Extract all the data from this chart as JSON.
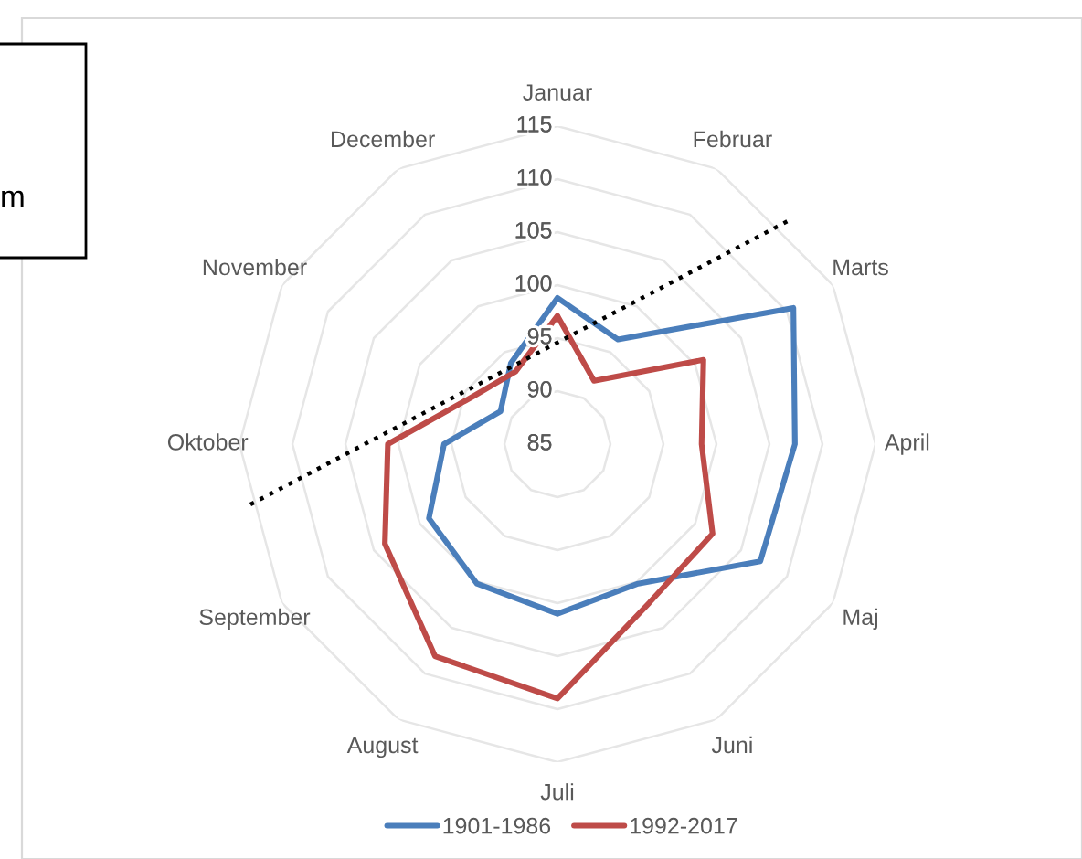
{
  "chart_data": {
    "type": "radar",
    "categories": [
      "Januar",
      "Februar",
      "Marts",
      "April",
      "Maj",
      "Juni",
      "Juli",
      "August",
      "September",
      "Oktober",
      "November",
      "December"
    ],
    "series": [
      {
        "name": "1901-1986",
        "color": "#4a7ebb",
        "values": [
          98.8,
          96.4,
          110.7,
          107.4,
          107.1,
          100.2,
          101.0,
          100.2,
          99.0,
          95.7,
          91.2,
          93.8
        ]
      },
      {
        "name": "1992-2017",
        "color": "#be4b48",
        "values": [
          97.1,
          91.9,
          100.9,
          98.6,
          101.9,
          102.3,
          109.0,
          108.1,
          103.8,
          101.0,
          94.1,
          92.9
        ]
      }
    ],
    "ylim": [
      85,
      115
    ],
    "yticks": [
      85,
      90,
      95,
      100,
      105,
      110,
      115
    ],
    "grid": true,
    "legend": "bottom",
    "marker": "none",
    "line_style": "solid",
    "annotations": [
      "m"
    ]
  }
}
